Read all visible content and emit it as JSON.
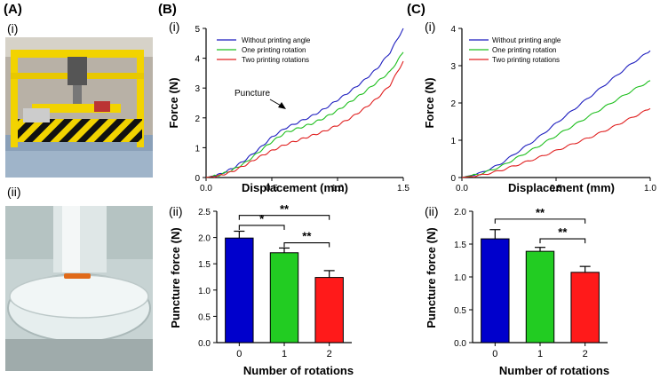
{
  "panels": {
    "A": "(A)",
    "B": "(B)",
    "C": "(C)",
    "Ai": "(i)",
    "Aii": "(ii)",
    "Bi": "(i)",
    "Bii": "(ii)",
    "Ci": "(i)",
    "Cii": "(ii)"
  },
  "photos": {
    "top": "3D printer rig with yellow frame and black-yellow hazard stripes",
    "bottom": "Close-up of needle above a clear gel sample in a petri dish"
  },
  "colors": {
    "blue": "#1f1fbf",
    "green": "#1fbf1f",
    "red": "#e02020",
    "bar_blue": "#0000cc",
    "bar_green": "#22cc22",
    "bar_red": "#ff1a1a"
  },
  "chart_data": [
    {
      "id": "Bi",
      "type": "line",
      "xlabel": "Displacement (mm)",
      "ylabel": "Force (N)",
      "xlim": [
        0,
        1.5
      ],
      "ylim": [
        0,
        5
      ],
      "xticks": [
        "0.0",
        "0.5",
        "1.0",
        "1.5"
      ],
      "yticks": [
        "0",
        "1",
        "2",
        "3",
        "4",
        "5"
      ],
      "annotation": "Puncture",
      "annotation_point": [
        0.62,
        1.75
      ],
      "legend": [
        "Without printing angle",
        "One printing rotation",
        "Two printing rotations"
      ],
      "series": [
        {
          "name": "Without printing angle",
          "color": "blue",
          "x": [
            0,
            0.1,
            0.2,
            0.3,
            0.4,
            0.5,
            0.6,
            0.7,
            0.8,
            0.9,
            1.0,
            1.1,
            1.2,
            1.3,
            1.4,
            1.5
          ],
          "y": [
            0,
            0.1,
            0.3,
            0.6,
            0.95,
            1.35,
            1.65,
            1.85,
            2.05,
            2.3,
            2.6,
            2.9,
            3.25,
            3.65,
            4.2,
            5.0
          ]
        },
        {
          "name": "One printing rotation",
          "color": "green",
          "x": [
            0,
            0.1,
            0.2,
            0.3,
            0.4,
            0.5,
            0.6,
            0.7,
            0.8,
            0.9,
            1.0,
            1.1,
            1.2,
            1.3,
            1.4,
            1.5
          ],
          "y": [
            0,
            0.08,
            0.25,
            0.5,
            0.85,
            1.2,
            1.5,
            1.65,
            1.8,
            2.0,
            2.25,
            2.55,
            2.85,
            3.2,
            3.55,
            4.2
          ]
        },
        {
          "name": "Two printing rotations",
          "color": "red",
          "x": [
            0,
            0.1,
            0.2,
            0.3,
            0.4,
            0.5,
            0.6,
            0.7,
            0.8,
            0.9,
            1.0,
            1.1,
            1.2,
            1.3,
            1.4,
            1.5
          ],
          "y": [
            0,
            0.06,
            0.2,
            0.42,
            0.68,
            0.9,
            1.1,
            1.25,
            1.4,
            1.55,
            1.75,
            2.0,
            2.3,
            2.65,
            3.1,
            3.9
          ]
        }
      ]
    },
    {
      "id": "Ci",
      "type": "line",
      "xlabel": "Displacement (mm)",
      "ylabel": "Force (N)",
      "xlim": [
        0,
        1.0
      ],
      "ylim": [
        0,
        4
      ],
      "xticks": [
        "0.0",
        "0.5",
        "1.0"
      ],
      "yticks": [
        "0",
        "1",
        "2",
        "3",
        "4"
      ],
      "legend": [
        "Without printing angle",
        "One printing rotation",
        "Two printing rotations"
      ],
      "series": [
        {
          "name": "Without printing angle",
          "color": "blue",
          "x": [
            0,
            0.1,
            0.2,
            0.3,
            0.4,
            0.5,
            0.6,
            0.7,
            0.8,
            0.9,
            1.0
          ],
          "y": [
            0,
            0.12,
            0.35,
            0.7,
            1.05,
            1.45,
            1.85,
            2.25,
            2.65,
            3.05,
            3.4
          ]
        },
        {
          "name": "One printing rotation",
          "color": "green",
          "x": [
            0,
            0.1,
            0.2,
            0.3,
            0.4,
            0.5,
            0.6,
            0.7,
            0.8,
            0.9,
            1.0
          ],
          "y": [
            0,
            0.1,
            0.28,
            0.55,
            0.82,
            1.12,
            1.42,
            1.72,
            2.02,
            2.32,
            2.6
          ]
        },
        {
          "name": "Two printing rotations",
          "color": "red",
          "x": [
            0,
            0.1,
            0.2,
            0.3,
            0.4,
            0.5,
            0.6,
            0.7,
            0.8,
            0.9,
            1.0
          ],
          "y": [
            0,
            0.06,
            0.18,
            0.35,
            0.52,
            0.72,
            0.92,
            1.12,
            1.35,
            1.6,
            1.85
          ]
        }
      ]
    },
    {
      "id": "Bii",
      "type": "bar",
      "xlabel": "Number of rotations",
      "ylabel": "Puncture force (N)",
      "categories": [
        "0",
        "1",
        "2"
      ],
      "values": [
        1.99,
        1.71,
        1.24
      ],
      "errors": [
        0.13,
        0.09,
        0.13
      ],
      "colors": [
        "bar_blue",
        "bar_green",
        "bar_red"
      ],
      "ylim": [
        0,
        2.5
      ],
      "yticks": [
        "0.0",
        "0.5",
        "1.0",
        "1.5",
        "2.0",
        "2.5"
      ],
      "significance": [
        {
          "from": 0,
          "to": 1,
          "label": "*",
          "level": 2.23
        },
        {
          "from": 0,
          "to": 2,
          "label": "**",
          "level": 2.42
        },
        {
          "from": 1,
          "to": 2,
          "label": "**",
          "level": 1.9
        }
      ]
    },
    {
      "id": "Cii",
      "type": "bar",
      "xlabel": "Number of rotations",
      "ylabel": "Puncture force (N)",
      "categories": [
        "0",
        "1",
        "2"
      ],
      "values": [
        1.58,
        1.39,
        1.07
      ],
      "errors": [
        0.14,
        0.06,
        0.09
      ],
      "colors": [
        "bar_blue",
        "bar_green",
        "bar_red"
      ],
      "ylim": [
        0,
        2.0
      ],
      "yticks": [
        "0.0",
        "0.5",
        "1.0",
        "1.5",
        "2.0"
      ],
      "significance": [
        {
          "from": 0,
          "to": 2,
          "label": "**",
          "level": 1.88
        },
        {
          "from": 1,
          "to": 2,
          "label": "**",
          "level": 1.58
        }
      ]
    }
  ]
}
